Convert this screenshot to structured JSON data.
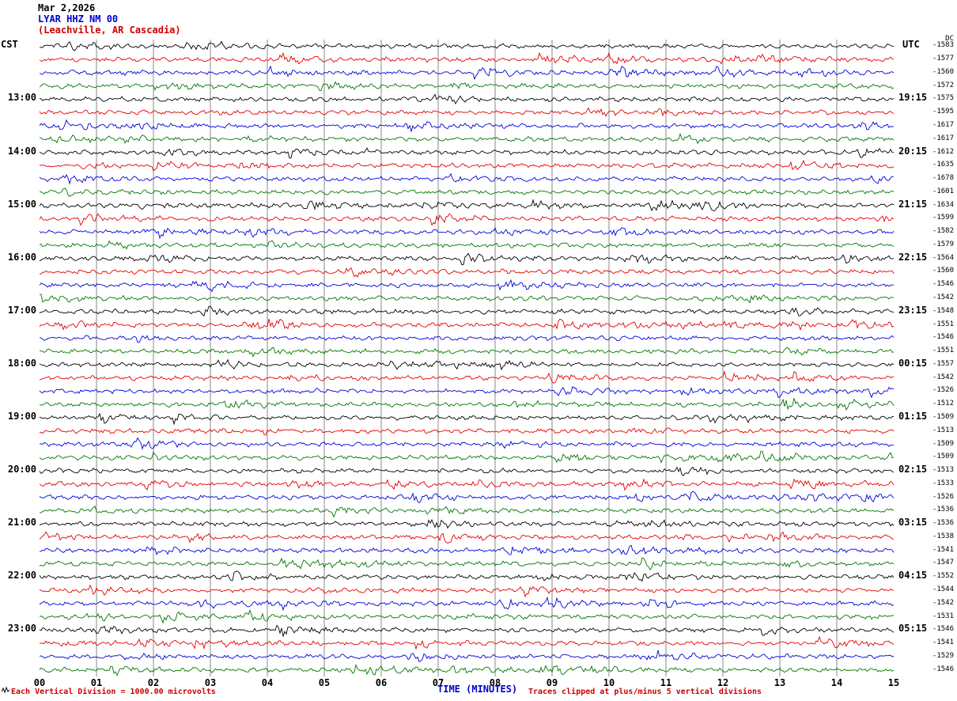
{
  "header": {
    "date": "Mar 2,2026",
    "station": "LYAR HHZ NM 00",
    "location": "(Leachville, AR Cascadia)"
  },
  "axes": {
    "left_timezone": "CST",
    "right_timezone": "UTC",
    "dc_header": "DC",
    "x_title": "TIME (MINUTES)",
    "x_ticks": [
      "00",
      "01",
      "02",
      "03",
      "04",
      "05",
      "06",
      "07",
      "08",
      "09",
      "10",
      "11",
      "12",
      "13",
      "14",
      "15"
    ]
  },
  "footer": {
    "left_note": "Each Vertical Division = 1000.00 microvolts",
    "right_note": "Traces clipped at plus/minus 5 vertical divisions"
  },
  "colors": {
    "trace_cycle": [
      "#000000",
      "#e60000",
      "#0000dd",
      "#007700"
    ],
    "grid": "#8a8a8a",
    "header_station": "#0000cc",
    "header_location": "#cc0000",
    "axis_title": "#0000cc",
    "footer_note": "#cc0000"
  },
  "chart_data": {
    "type": "line",
    "subtype": "seismogram-helicorder",
    "title": "LYAR HHZ NM 00 (Leachville, AR Cascadia) Mar 2,2026",
    "xlabel": "TIME (MINUTES)",
    "x_range_minutes": [
      0,
      15
    ],
    "minutes_per_row": 15,
    "vertical_division_microvolts": 1000.0,
    "clip_divisions": 5,
    "rows": [
      {
        "cst": "",
        "utc": "",
        "dc": -1583,
        "color": "black"
      },
      {
        "cst": "",
        "utc": "",
        "dc": -1577,
        "color": "red"
      },
      {
        "cst": "",
        "utc": "",
        "dc": -1560,
        "color": "blue"
      },
      {
        "cst": "",
        "utc": "",
        "dc": -1572,
        "color": "green"
      },
      {
        "cst": "13:00",
        "utc": "19:15",
        "dc": -1575,
        "color": "black"
      },
      {
        "cst": "",
        "utc": "",
        "dc": -1595,
        "color": "red"
      },
      {
        "cst": "",
        "utc": "",
        "dc": -1617,
        "color": "blue"
      },
      {
        "cst": "",
        "utc": "",
        "dc": -1617,
        "color": "green"
      },
      {
        "cst": "14:00",
        "utc": "20:15",
        "dc": -1612,
        "color": "black"
      },
      {
        "cst": "",
        "utc": "",
        "dc": -1635,
        "color": "red"
      },
      {
        "cst": "",
        "utc": "",
        "dc": -1678,
        "color": "blue"
      },
      {
        "cst": "",
        "utc": "",
        "dc": -1601,
        "color": "green"
      },
      {
        "cst": "15:00",
        "utc": "21:15",
        "dc": -1634,
        "color": "black"
      },
      {
        "cst": "",
        "utc": "",
        "dc": -1599,
        "color": "red"
      },
      {
        "cst": "",
        "utc": "",
        "dc": -1582,
        "color": "blue"
      },
      {
        "cst": "",
        "utc": "",
        "dc": -1579,
        "color": "green"
      },
      {
        "cst": "16:00",
        "utc": "22:15",
        "dc": -1564,
        "color": "black"
      },
      {
        "cst": "",
        "utc": "",
        "dc": -1560,
        "color": "red"
      },
      {
        "cst": "",
        "utc": "",
        "dc": -1546,
        "color": "blue"
      },
      {
        "cst": "",
        "utc": "",
        "dc": -1542,
        "color": "green"
      },
      {
        "cst": "17:00",
        "utc": "23:15",
        "dc": -1548,
        "color": "black"
      },
      {
        "cst": "",
        "utc": "",
        "dc": -1551,
        "color": "red"
      },
      {
        "cst": "",
        "utc": "",
        "dc": -1546,
        "color": "blue"
      },
      {
        "cst": "",
        "utc": "",
        "dc": -1551,
        "color": "green"
      },
      {
        "cst": "18:00",
        "utc": "00:15",
        "dc": -1557,
        "color": "black"
      },
      {
        "cst": "",
        "utc": "",
        "dc": -1542,
        "color": "red"
      },
      {
        "cst": "",
        "utc": "",
        "dc": -1526,
        "color": "blue"
      },
      {
        "cst": "",
        "utc": "",
        "dc": -1512,
        "color": "green"
      },
      {
        "cst": "19:00",
        "utc": "01:15",
        "dc": -1509,
        "color": "black"
      },
      {
        "cst": "",
        "utc": "",
        "dc": -1513,
        "color": "red"
      },
      {
        "cst": "",
        "utc": "",
        "dc": -1509,
        "color": "blue"
      },
      {
        "cst": "",
        "utc": "",
        "dc": -1509,
        "color": "green"
      },
      {
        "cst": "20:00",
        "utc": "02:15",
        "dc": -1513,
        "color": "black"
      },
      {
        "cst": "",
        "utc": "",
        "dc": -1533,
        "color": "red"
      },
      {
        "cst": "",
        "utc": "",
        "dc": -1526,
        "color": "blue"
      },
      {
        "cst": "",
        "utc": "",
        "dc": -1536,
        "color": "green"
      },
      {
        "cst": "21:00",
        "utc": "03:15",
        "dc": -1536,
        "color": "black"
      },
      {
        "cst": "",
        "utc": "",
        "dc": -1538,
        "color": "red"
      },
      {
        "cst": "",
        "utc": "",
        "dc": -1541,
        "color": "blue"
      },
      {
        "cst": "",
        "utc": "",
        "dc": -1547,
        "color": "green"
      },
      {
        "cst": "22:00",
        "utc": "04:15",
        "dc": -1552,
        "color": "black"
      },
      {
        "cst": "",
        "utc": "",
        "dc": -1544,
        "color": "red"
      },
      {
        "cst": "",
        "utc": "",
        "dc": -1542,
        "color": "blue"
      },
      {
        "cst": "",
        "utc": "",
        "dc": -1531,
        "color": "green"
      },
      {
        "cst": "23:00",
        "utc": "05:15",
        "dc": -1546,
        "color": "black"
      },
      {
        "cst": "",
        "utc": "",
        "dc": -1541,
        "color": "red"
      },
      {
        "cst": "",
        "utc": "",
        "dc": -1529,
        "color": "blue"
      },
      {
        "cst": "",
        "utc": "",
        "dc": -1546,
        "color": "green"
      }
    ]
  }
}
